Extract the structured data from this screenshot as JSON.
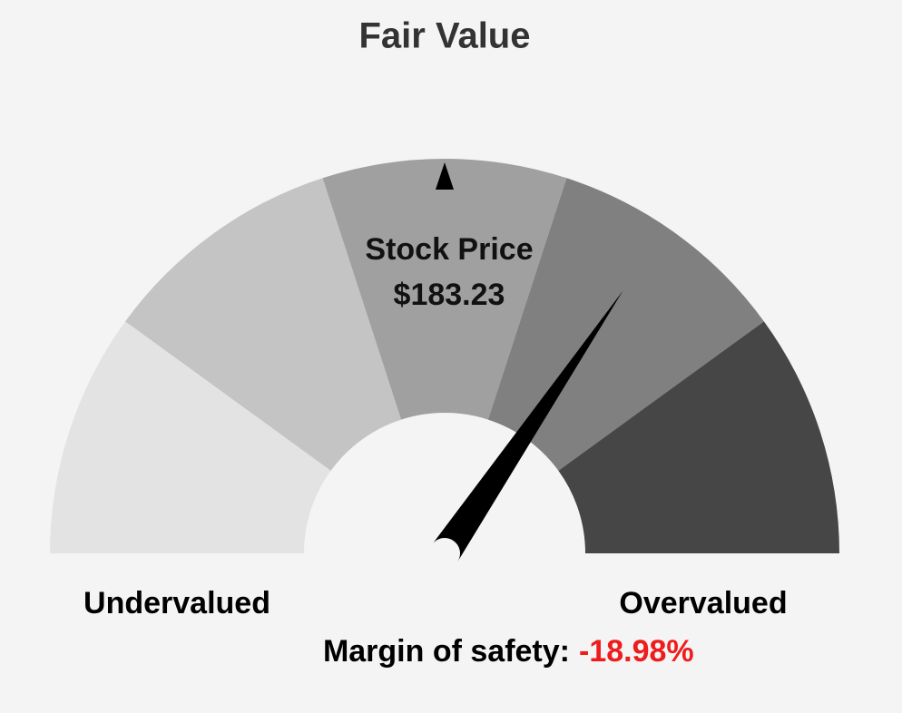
{
  "chart_data": {
    "type": "gauge",
    "title": "Fair Value",
    "lim": [
      50,
      -50
    ],
    "bands": [
      {
        "from": 50,
        "to": 30,
        "color": "#e3e3e3"
      },
      {
        "from": 30,
        "to": 10,
        "color": "#c4c4c4"
      },
      {
        "from": 10,
        "to": -10,
        "color": "#a0a0a0"
      },
      {
        "from": -10,
        "to": -30,
        "color": "#808080"
      },
      {
        "from": -30,
        "to": -50,
        "color": "#464646"
      }
    ],
    "marker": {
      "label": "Stock Price",
      "value": 183.23,
      "value_label": "$183.23",
      "position": 0,
      "color": "#000000"
    },
    "needle": {
      "label": "Margin of safety:",
      "value": -18.98,
      "value_label": "-18.98%",
      "color": "#000000",
      "label_color": "#ee1c1c"
    },
    "left_label": "Undervalued",
    "right_label": "Overvalued"
  }
}
